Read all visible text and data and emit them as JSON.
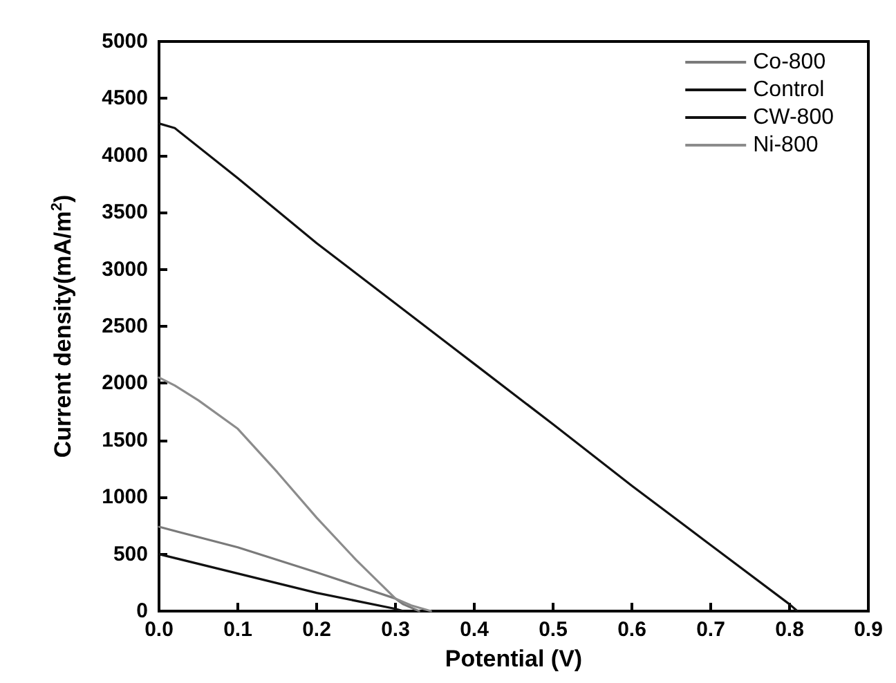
{
  "chart_data": {
    "type": "line",
    "xlabel": "Potential (V)",
    "ylabel": "Current density(mA/m$^{2}$)",
    "xlim": [
      0,
      0.9
    ],
    "xticks": [
      {
        "value": 0,
        "label": "0.0"
      },
      0.1,
      0.2,
      0.3,
      0.4,
      0.5,
      0.6,
      0.7,
      0.8,
      0.9
    ],
    "ylim": [
      0,
      5000
    ],
    "yticks": [
      0,
      500,
      1000,
      1500,
      2000,
      2500,
      3000,
      3500,
      4000,
      4500,
      5000
    ],
    "grid": false,
    "legend": "top right",
    "marker": "none",
    "line_style": "solid",
    "series": [
      {
        "name": "Co-800",
        "color": "#7a7a7a",
        "x": [
          0,
          0.1,
          0.2,
          0.3,
          0.31,
          0.33
        ],
        "values": [
          740,
          560,
          340,
          110,
          60,
          0
        ]
      },
      {
        "name": "Control",
        "color": "#111111",
        "x": [
          0,
          0.1,
          0.2,
          0.3,
          0.31
        ],
        "values": [
          500,
          330,
          160,
          20,
          0
        ]
      },
      {
        "name": "CW-800",
        "color": "#111111",
        "x": [
          0,
          0.02,
          0.1,
          0.2,
          0.3,
          0.4,
          0.5,
          0.6,
          0.7,
          0.8,
          0.81
        ],
        "values": [
          4280,
          4240,
          3800,
          3230,
          2700,
          2170,
          1640,
          1100,
          580,
          60,
          0
        ]
      },
      {
        "name": "Ni-800",
        "color": "#8c8c8c",
        "x": [
          0,
          0.02,
          0.05,
          0.1,
          0.15,
          0.2,
          0.25,
          0.3,
          0.32,
          0.345
        ],
        "values": [
          2050,
          1980,
          1850,
          1600,
          1220,
          820,
          450,
          110,
          50,
          0
        ]
      }
    ]
  }
}
